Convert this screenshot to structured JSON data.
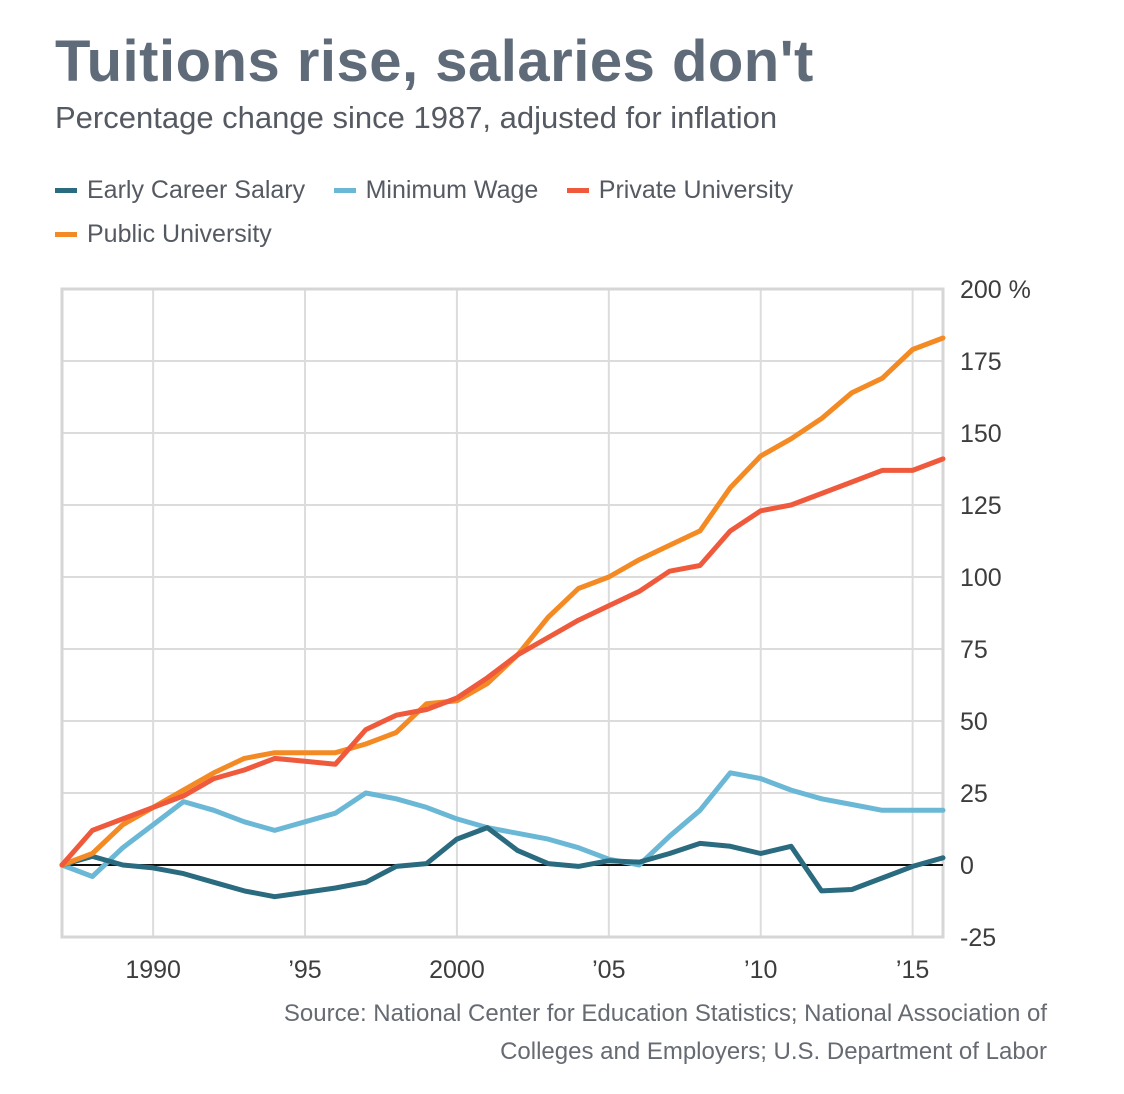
{
  "header": {
    "title": "Tuitions rise, salaries don't",
    "subtitle": "Percentage change since 1987, adjusted for inflation"
  },
  "legend": [
    {
      "label": "Early Career Salary",
      "color": "#2b6b7f"
    },
    {
      "label": "Minimum Wage",
      "color": "#6bb8d6"
    },
    {
      "label": "Private University",
      "color": "#f05a3c"
    },
    {
      "label": "Public University",
      "color": "#f48a24"
    }
  ],
  "footer": {
    "source_line1": "Source: National Center for Education Statistics; National Association of",
    "source_line2": "Colleges and Employers; U.S. Department of Labor"
  },
  "chart_data": {
    "type": "line",
    "title": "Tuitions rise, salaries don't",
    "subtitle": "Percentage change since 1987, adjusted for inflation",
    "x": [
      1987,
      1988,
      1989,
      1990,
      1991,
      1992,
      1993,
      1994,
      1995,
      1996,
      1997,
      1998,
      1999,
      2000,
      2001,
      2002,
      2003,
      2004,
      2005,
      2006,
      2007,
      2008,
      2009,
      2010,
      2011,
      2012,
      2013,
      2014,
      2015,
      2016
    ],
    "xlim": [
      1987,
      2016
    ],
    "ylim": [
      -25,
      200
    ],
    "x_ticks": [
      1990,
      1995,
      2000,
      2005,
      2010,
      2015
    ],
    "x_tick_labels": [
      "1990",
      "’95",
      "2000",
      "’05",
      "’10",
      "’15"
    ],
    "y_ticks": [
      200,
      175,
      150,
      125,
      100,
      75,
      50,
      25,
      0,
      -25
    ],
    "y_tick_labels": [
      "200 %",
      "175",
      "150",
      "125",
      "100",
      "75",
      "50",
      "25",
      "0",
      "-25"
    ],
    "grid": true,
    "zero_line": true,
    "series": [
      {
        "name": "Minimum Wage",
        "color": "#6bb8d6",
        "values": [
          0,
          -4,
          6,
          14,
          22,
          19,
          15,
          12,
          15,
          18,
          25,
          23,
          20,
          16,
          13,
          11,
          9,
          6,
          2,
          0,
          10,
          19,
          32,
          30,
          26,
          23,
          21,
          19,
          19,
          19
        ]
      },
      {
        "name": "Early Career Salary",
        "color": "#2b6b7f",
        "values": [
          0,
          3,
          0,
          -1,
          -3,
          -6,
          -9,
          -11,
          -9.5,
          -8,
          -6,
          -0.5,
          0.5,
          9,
          13,
          5,
          0.5,
          -0.5,
          1.5,
          1,
          4,
          7.5,
          6.5,
          4,
          6.5,
          -9,
          -8.5,
          -4.5,
          -0.5,
          2.5
        ]
      },
      {
        "name": "Public University",
        "color": "#f48a24",
        "values": [
          0,
          4,
          14,
          20,
          26,
          32,
          37,
          39,
          39,
          39,
          42,
          46,
          56,
          57,
          63,
          73,
          86,
          96,
          100,
          106,
          111,
          116,
          131,
          142,
          148,
          155,
          164,
          169,
          179,
          183
        ]
      },
      {
        "name": "Private University",
        "color": "#f05a3c",
        "values": [
          0,
          12,
          16,
          20,
          24,
          30,
          33,
          37,
          36,
          35,
          47,
          52,
          54,
          58,
          65,
          73,
          79,
          85,
          90,
          95,
          102,
          104,
          116,
          123,
          125,
          129,
          133,
          137,
          137,
          141
        ]
      }
    ]
  }
}
